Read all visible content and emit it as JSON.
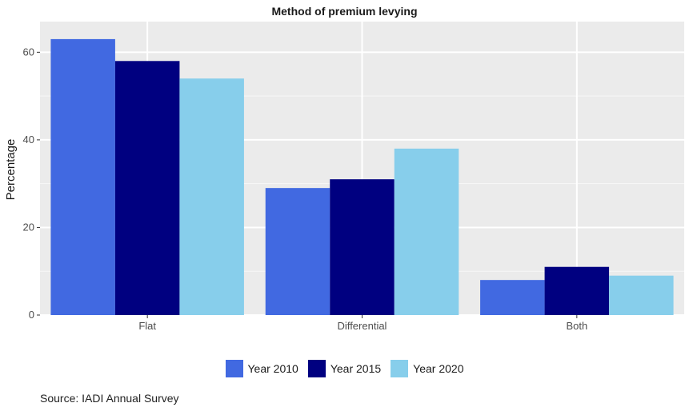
{
  "chart_data": {
    "type": "bar",
    "title": "Method of premium levying",
    "xlabel": "",
    "ylabel": "Percentage",
    "categories": [
      "Flat",
      "Differential",
      "Both"
    ],
    "series": [
      {
        "name": "Year 2010",
        "values": [
          63,
          29,
          8
        ],
        "color": "#4169E1"
      },
      {
        "name": "Year 2015",
        "values": [
          58,
          31,
          11
        ],
        "color": "#000080"
      },
      {
        "name": "Year 2020",
        "values": [
          54,
          38,
          9
        ],
        "color": "#87CEEB"
      }
    ],
    "ylim": [
      0,
      67
    ],
    "yticks": [
      0,
      20,
      40,
      60
    ],
    "grid": true,
    "legend_position": "bottom"
  },
  "source": "Source: IADI Annual Survey"
}
